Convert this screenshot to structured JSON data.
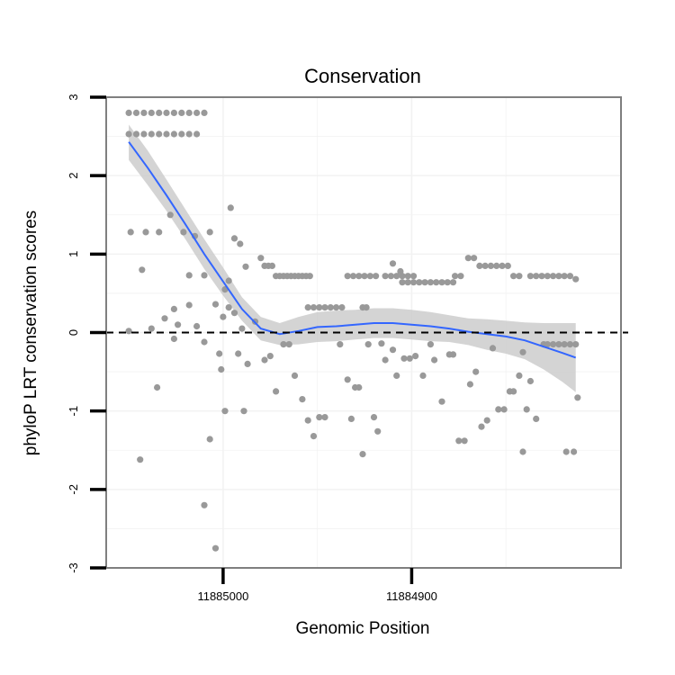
{
  "chart_data": {
    "type": "scatter",
    "title": "Conservation",
    "xlabel": "Genomic Position",
    "ylabel": "phyloP LRT conservation scores",
    "xlim": [
      11885062,
      11884789
    ],
    "ylim": [
      -3,
      3
    ],
    "x_reversed": true,
    "y_ticks": [
      3,
      2,
      1,
      0,
      -1,
      -2,
      -3
    ],
    "y_tick_labels": [
      "3",
      "2",
      "1",
      "0",
      "-1",
      "-2",
      "-3"
    ],
    "x_ticks": [
      11885000,
      11884900
    ],
    "x_tick_labels": [
      "11885000",
      "11884900"
    ],
    "grid": true,
    "reference_line": {
      "y": 0,
      "style": "dashed",
      "color": "#000000"
    },
    "colors": {
      "points": "#999999",
      "smooth_line": "#3366ff",
      "confidence_band": "#cccccc",
      "panel_border": "#7f7f7f",
      "grid": "#f2f2f2"
    },
    "series": [
      {
        "kind": "points",
        "points": [
          [
            11885050,
            2.8
          ],
          [
            11885046,
            2.8
          ],
          [
            11885042,
            2.8
          ],
          [
            11885038,
            2.8
          ],
          [
            11885034,
            2.8
          ],
          [
            11885030,
            2.8
          ],
          [
            11885026,
            2.8
          ],
          [
            11885022,
            2.8
          ],
          [
            11885018,
            2.8
          ],
          [
            11885014,
            2.8
          ],
          [
            11885010,
            2.8
          ],
          [
            11885050,
            2.53
          ],
          [
            11885046,
            2.53
          ],
          [
            11885042,
            2.53
          ],
          [
            11885038,
            2.53
          ],
          [
            11885034,
            2.53
          ],
          [
            11885030,
            2.53
          ],
          [
            11885026,
            2.53
          ],
          [
            11885022,
            2.53
          ],
          [
            11885018,
            2.53
          ],
          [
            11885014,
            2.53
          ],
          [
            11885049,
            1.28
          ],
          [
            11885043,
            0.8
          ],
          [
            11885041,
            1.28
          ],
          [
            11885038,
            0.05
          ],
          [
            11885034,
            1.28
          ],
          [
            11885031,
            0.18
          ],
          [
            11885028,
            1.5
          ],
          [
            11885026,
            -0.08
          ],
          [
            11885021,
            1.28
          ],
          [
            11885018,
            0.73
          ],
          [
            11885015,
            1.23
          ],
          [
            11885010,
            0.73
          ],
          [
            11885007,
            1.28
          ],
          [
            11885004,
            0.36
          ],
          [
            11885000,
            0.2
          ],
          [
            11884997,
            0.32
          ],
          [
            11884994,
            0.25
          ],
          [
            11884990,
            0.05
          ],
          [
            11884987,
            -0.4
          ],
          [
            11884983,
            0.14
          ],
          [
            11884988,
            0.84
          ],
          [
            11884994,
            1.2
          ],
          [
            11884991,
            1.13
          ],
          [
            11884996,
            1.59
          ],
          [
            11884999,
            0.55
          ],
          [
            11884997,
            0.66
          ],
          [
            11885001,
            -0.47
          ],
          [
            11885002,
            -0.27
          ],
          [
            11884992,
            -0.27
          ],
          [
            11884989,
            -1.0
          ],
          [
            11884999,
            -1.0
          ],
          [
            11885010,
            -2.2
          ],
          [
            11885004,
            -2.75
          ],
          [
            11885007,
            -1.36
          ],
          [
            11885050,
            0.02
          ],
          [
            11885035,
            -0.7
          ],
          [
            11885044,
            -1.62
          ],
          [
            11885026,
            0.3
          ],
          [
            11885024,
            0.1
          ],
          [
            11885018,
            0.35
          ],
          [
            11885014,
            0.08
          ],
          [
            11885010,
            -0.12
          ],
          [
            11884980,
            0.95
          ],
          [
            11884978,
            0.85
          ],
          [
            11884976,
            0.85
          ],
          [
            11884974,
            0.85
          ],
          [
            11884972,
            0.72
          ],
          [
            11884970,
            0.72
          ],
          [
            11884968,
            0.72
          ],
          [
            11884966,
            0.72
          ],
          [
            11884964,
            0.72
          ],
          [
            11884962,
            0.72
          ],
          [
            11884960,
            0.72
          ],
          [
            11884958,
            0.72
          ],
          [
            11884956,
            0.72
          ],
          [
            11884954,
            0.72
          ],
          [
            11884978,
            -0.35
          ],
          [
            11884975,
            -0.3
          ],
          [
            11884972,
            -0.75
          ],
          [
            11884968,
            -0.15
          ],
          [
            11884965,
            -0.15
          ],
          [
            11884962,
            -0.55
          ],
          [
            11884958,
            -0.85
          ],
          [
            11884955,
            -1.12
          ],
          [
            11884952,
            -1.32
          ],
          [
            11884949,
            -1.08
          ],
          [
            11884946,
            -1.08
          ],
          [
            11884955,
            0.32
          ],
          [
            11884952,
            0.32
          ],
          [
            11884949,
            0.32
          ],
          [
            11884946,
            0.32
          ],
          [
            11884943,
            0.32
          ],
          [
            11884940,
            0.32
          ],
          [
            11884937,
            0.32
          ],
          [
            11884934,
            0.72
          ],
          [
            11884931,
            0.72
          ],
          [
            11884928,
            0.72
          ],
          [
            11884925,
            0.72
          ],
          [
            11884922,
            0.72
          ],
          [
            11884919,
            0.72
          ],
          [
            11884914,
            0.72
          ],
          [
            11884911,
            0.72
          ],
          [
            11884908,
            0.72
          ],
          [
            11884905,
            0.72
          ],
          [
            11884902,
            0.72
          ],
          [
            11884899,
            0.72
          ],
          [
            11884910,
            0.88
          ],
          [
            11884906,
            0.78
          ],
          [
            11884905,
            0.64
          ],
          [
            11884902,
            0.64
          ],
          [
            11884899,
            0.64
          ],
          [
            11884896,
            0.64
          ],
          [
            11884893,
            0.64
          ],
          [
            11884890,
            0.64
          ],
          [
            11884887,
            0.64
          ],
          [
            11884884,
            0.64
          ],
          [
            11884881,
            0.64
          ],
          [
            11884878,
            0.64
          ],
          [
            11884926,
            0.32
          ],
          [
            11884924,
            0.32
          ],
          [
            11884938,
            -0.15
          ],
          [
            11884934,
            -0.6
          ],
          [
            11884932,
            -1.1
          ],
          [
            11884930,
            -0.7
          ],
          [
            11884928,
            -0.7
          ],
          [
            11884926,
            -1.55
          ],
          [
            11884923,
            -0.15
          ],
          [
            11884920,
            -1.08
          ],
          [
            11884918,
            -1.26
          ],
          [
            11884916,
            -0.14
          ],
          [
            11884914,
            -0.35
          ],
          [
            11884910,
            -0.22
          ],
          [
            11884908,
            -0.55
          ],
          [
            11884904,
            -0.33
          ],
          [
            11884901,
            -0.33
          ],
          [
            11884898,
            -0.3
          ],
          [
            11884894,
            -0.55
          ],
          [
            11884890,
            -0.15
          ],
          [
            11884888,
            -0.35
          ],
          [
            11884884,
            -0.88
          ],
          [
            11884880,
            -0.28
          ],
          [
            11884878,
            -0.28
          ],
          [
            11884875,
            -1.38
          ],
          [
            11884872,
            -1.38
          ],
          [
            11884869,
            -0.66
          ],
          [
            11884866,
            -0.5
          ],
          [
            11884863,
            -1.2
          ],
          [
            11884860,
            -1.12
          ],
          [
            11884857,
            -0.2
          ],
          [
            11884877,
            0.72
          ],
          [
            11884874,
            0.72
          ],
          [
            11884870,
            0.95
          ],
          [
            11884867,
            0.95
          ],
          [
            11884864,
            0.85
          ],
          [
            11884861,
            0.85
          ],
          [
            11884858,
            0.85
          ],
          [
            11884855,
            0.85
          ],
          [
            11884852,
            0.85
          ],
          [
            11884849,
            0.85
          ],
          [
            11884846,
            0.72
          ],
          [
            11884843,
            0.72
          ],
          [
            11884837,
            0.72
          ],
          [
            11884834,
            0.72
          ],
          [
            11884831,
            0.72
          ],
          [
            11884828,
            0.72
          ],
          [
            11884825,
            0.72
          ],
          [
            11884822,
            0.72
          ],
          [
            11884819,
            0.72
          ],
          [
            11884816,
            0.72
          ],
          [
            11884813,
            0.68
          ],
          [
            11884854,
            -0.98
          ],
          [
            11884851,
            -0.98
          ],
          [
            11884848,
            -0.75
          ],
          [
            11884846,
            -0.75
          ],
          [
            11884843,
            -0.55
          ],
          [
            11884841,
            -1.52
          ],
          [
            11884839,
            -0.98
          ],
          [
            11884837,
            -0.62
          ],
          [
            11884834,
            -1.1
          ],
          [
            11884830,
            -0.15
          ],
          [
            11884828,
            -0.15
          ],
          [
            11884825,
            -0.15
          ],
          [
            11884822,
            -0.15
          ],
          [
            11884819,
            -0.15
          ],
          [
            11884816,
            -0.15
          ],
          [
            11884813,
            -0.15
          ],
          [
            11884812,
            -0.83
          ],
          [
            11884818,
            -1.52
          ],
          [
            11884814,
            -1.52
          ],
          [
            11884841,
            -0.25
          ]
        ]
      },
      {
        "kind": "smooth",
        "line": [
          [
            11885050,
            2.43
          ],
          [
            11885040,
            2.1
          ],
          [
            11885030,
            1.75
          ],
          [
            11885020,
            1.38
          ],
          [
            11885010,
            1.0
          ],
          [
            11885000,
            0.65
          ],
          [
            11884990,
            0.3
          ],
          [
            11884980,
            0.05
          ],
          [
            11884970,
            -0.02
          ],
          [
            11884960,
            0.02
          ],
          [
            11884950,
            0.07
          ],
          [
            11884940,
            0.08
          ],
          [
            11884930,
            0.1
          ],
          [
            11884920,
            0.12
          ],
          [
            11884910,
            0.12
          ],
          [
            11884900,
            0.1
          ],
          [
            11884890,
            0.08
          ],
          [
            11884880,
            0.05
          ],
          [
            11884870,
            0.01
          ],
          [
            11884860,
            -0.02
          ],
          [
            11884850,
            -0.05
          ],
          [
            11884840,
            -0.1
          ],
          [
            11884830,
            -0.18
          ],
          [
            11884820,
            -0.26
          ],
          [
            11884813,
            -0.32
          ]
        ],
        "band_upper": [
          [
            11885050,
            2.65
          ],
          [
            11885040,
            2.32
          ],
          [
            11885030,
            1.95
          ],
          [
            11885020,
            1.57
          ],
          [
            11885010,
            1.19
          ],
          [
            11885000,
            0.83
          ],
          [
            11884990,
            0.45
          ],
          [
            11884980,
            0.2
          ],
          [
            11884970,
            0.12
          ],
          [
            11884960,
            0.2
          ],
          [
            11884950,
            0.26
          ],
          [
            11884940,
            0.28
          ],
          [
            11884930,
            0.29
          ],
          [
            11884920,
            0.31
          ],
          [
            11884910,
            0.31
          ],
          [
            11884900,
            0.29
          ],
          [
            11884890,
            0.26
          ],
          [
            11884880,
            0.22
          ],
          [
            11884870,
            0.18
          ],
          [
            11884860,
            0.17
          ],
          [
            11884850,
            0.15
          ],
          [
            11884840,
            0.13
          ],
          [
            11884830,
            0.12
          ],
          [
            11884820,
            0.12
          ],
          [
            11884813,
            0.12
          ]
        ],
        "band_lower": [
          [
            11885050,
            2.2
          ],
          [
            11885040,
            1.88
          ],
          [
            11885030,
            1.55
          ],
          [
            11885020,
            1.19
          ],
          [
            11885010,
            0.81
          ],
          [
            11885000,
            0.47
          ],
          [
            11884990,
            0.15
          ],
          [
            11884980,
            -0.1
          ],
          [
            11884970,
            -0.16
          ],
          [
            11884960,
            -0.15
          ],
          [
            11884950,
            -0.12
          ],
          [
            11884940,
            -0.11
          ],
          [
            11884930,
            -0.09
          ],
          [
            11884920,
            -0.07
          ],
          [
            11884910,
            -0.07
          ],
          [
            11884900,
            -0.09
          ],
          [
            11884890,
            -0.11
          ],
          [
            11884880,
            -0.12
          ],
          [
            11884870,
            -0.16
          ],
          [
            11884860,
            -0.22
          ],
          [
            11884850,
            -0.27
          ],
          [
            11884840,
            -0.34
          ],
          [
            11884830,
            -0.47
          ],
          [
            11884820,
            -0.63
          ],
          [
            11884813,
            -0.76
          ]
        ]
      }
    ]
  }
}
